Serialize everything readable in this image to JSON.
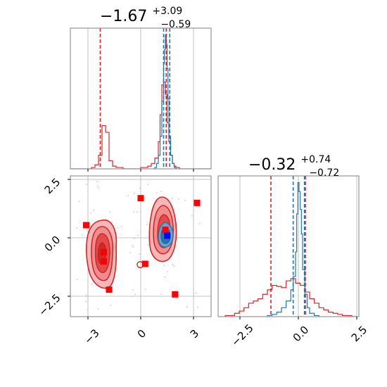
{
  "chart_data": [
    {
      "panel": "top-left",
      "type": "histogram",
      "title": {
        "main": "−1.67",
        "sup": "+3.09",
        "sub": "−0.59"
      },
      "xlim": [
        -4,
        4
      ],
      "grid": true,
      "series": [
        {
          "color": "#d62728",
          "bins": [
            -4,
            -3.8,
            -3.6,
            -3.4,
            -3.2,
            -3.0,
            -2.8,
            -2.6,
            -2.4,
            -2.2,
            -2.0,
            -1.8,
            -1.6,
            -1.4,
            -1.2,
            -1.0,
            -0.8,
            -0.6,
            -0.4,
            -0.2,
            0.0,
            0.2,
            0.4,
            0.6,
            0.8,
            1.0,
            1.1,
            1.2,
            1.3,
            1.4,
            1.5,
            1.6,
            1.7,
            1.8,
            1.9,
            2.0,
            2.2,
            2.4,
            2.6,
            2.8,
            3.0,
            3.2,
            3.4,
            3.6,
            3.8,
            4.0
          ],
          "counts": [
            0,
            0,
            0,
            0,
            0,
            0,
            1,
            3,
            10,
            32,
            27,
            6,
            2,
            1,
            1,
            0,
            0,
            0,
            0,
            0,
            1,
            1,
            2,
            4,
            8,
            20,
            40,
            62,
            64,
            55,
            34,
            20,
            10,
            4,
            2,
            1,
            0,
            0,
            0,
            0,
            0,
            0,
            0,
            0,
            0
          ]
        },
        {
          "color": "#1f77b4",
          "bins": [
            0.8,
            0.9,
            1.0,
            1.1,
            1.2,
            1.3,
            1.35,
            1.4,
            1.45,
            1.5,
            1.55,
            1.6,
            1.7,
            1.8,
            1.9,
            2.0
          ],
          "counts": [
            1,
            4,
            10,
            24,
            50,
            78,
            88,
            99,
            92,
            74,
            52,
            24,
            10,
            4,
            1
          ]
        }
      ],
      "lines": [
        {
          "x": -2.3,
          "color": "#d62728"
        },
        {
          "x": 1.45,
          "color": "#d62728"
        },
        {
          "x": 1.3,
          "color": "#1f77b4"
        },
        {
          "x": 1.65,
          "color": "#1f77b4"
        }
      ]
    },
    {
      "panel": "bottom-left",
      "type": "contour",
      "xlim": [
        -4,
        4
      ],
      "ylim": [
        -3.3,
        2.7
      ],
      "xticks": [
        "−3",
        "0",
        "3"
      ],
      "yticks": [
        "2.5",
        "0.0",
        "−2.5"
      ],
      "grid": true,
      "markers": [
        {
          "x": -3.1,
          "y": 0.6,
          "color": "#ff0000"
        },
        {
          "x": -2.1,
          "y": -0.55,
          "color": "#ff0000"
        },
        {
          "x": -2.1,
          "y": -0.95,
          "color": "#ff0000"
        },
        {
          "x": -1.8,
          "y": -2.15,
          "color": "#ff0000"
        },
        {
          "x": 0.0,
          "y": 1.75,
          "color": "#ff0000"
        },
        {
          "x": 0.25,
          "y": -1.05,
          "color": "#ff0000"
        },
        {
          "x": 1.4,
          "y": 0.4,
          "color": "#ff0000"
        },
        {
          "x": 1.95,
          "y": -2.35,
          "color": "#ff0000"
        },
        {
          "x": 3.2,
          "y": 1.55,
          "color": "#ff0000"
        },
        {
          "x": 1.5,
          "y": 0.15,
          "color": "#0000ff"
        }
      ]
    },
    {
      "panel": "bottom-right",
      "type": "histogram",
      "title": {
        "main": "−0.32",
        "sup": "+0.74",
        "sub": "−0.72"
      },
      "xlim": [
        -3.3,
        2.7
      ],
      "xticks": [
        "−2.5",
        "0.0",
        "2.5"
      ],
      "grid": true,
      "series": [
        {
          "color": "#d62728",
          "bins": [
            -3.0,
            -2.8,
            -2.6,
            -2.4,
            -2.2,
            -2.0,
            -1.8,
            -1.6,
            -1.4,
            -1.2,
            -1.0,
            -0.8,
            -0.6,
            -0.4,
            -0.2,
            0.0,
            0.2,
            0.4,
            0.6,
            0.8,
            1.0,
            1.2,
            1.4,
            1.6,
            1.8,
            2.0,
            2.2,
            2.4,
            2.6
          ],
          "counts": [
            1,
            1,
            3,
            5,
            8,
            12,
            14,
            16,
            20,
            24,
            28,
            27,
            26,
            32,
            34,
            30,
            28,
            22,
            16,
            12,
            8,
            6,
            4,
            3,
            2,
            1,
            1,
            0
          ]
        },
        {
          "color": "#1f77b4",
          "bins": [
            -1.2,
            -1.0,
            -0.8,
            -0.6,
            -0.4,
            -0.2,
            -0.1,
            0.0,
            0.05,
            0.1,
            0.15,
            0.2,
            0.25,
            0.3,
            0.4,
            0.5,
            0.6,
            0.8,
            1.0
          ],
          "counts": [
            1,
            2,
            4,
            8,
            14,
            24,
            36,
            58,
            92,
            120,
            112,
            96,
            74,
            42,
            20,
            8,
            3,
            1
          ]
        }
      ],
      "lines": [
        {
          "x": -1.05,
          "color": "#d62728"
        },
        {
          "x": 0.42,
          "color": "#d62728"
        },
        {
          "x": -0.1,
          "color": "#1f77b4"
        },
        {
          "x": 0.38,
          "color": "#1f77b4"
        }
      ]
    }
  ]
}
